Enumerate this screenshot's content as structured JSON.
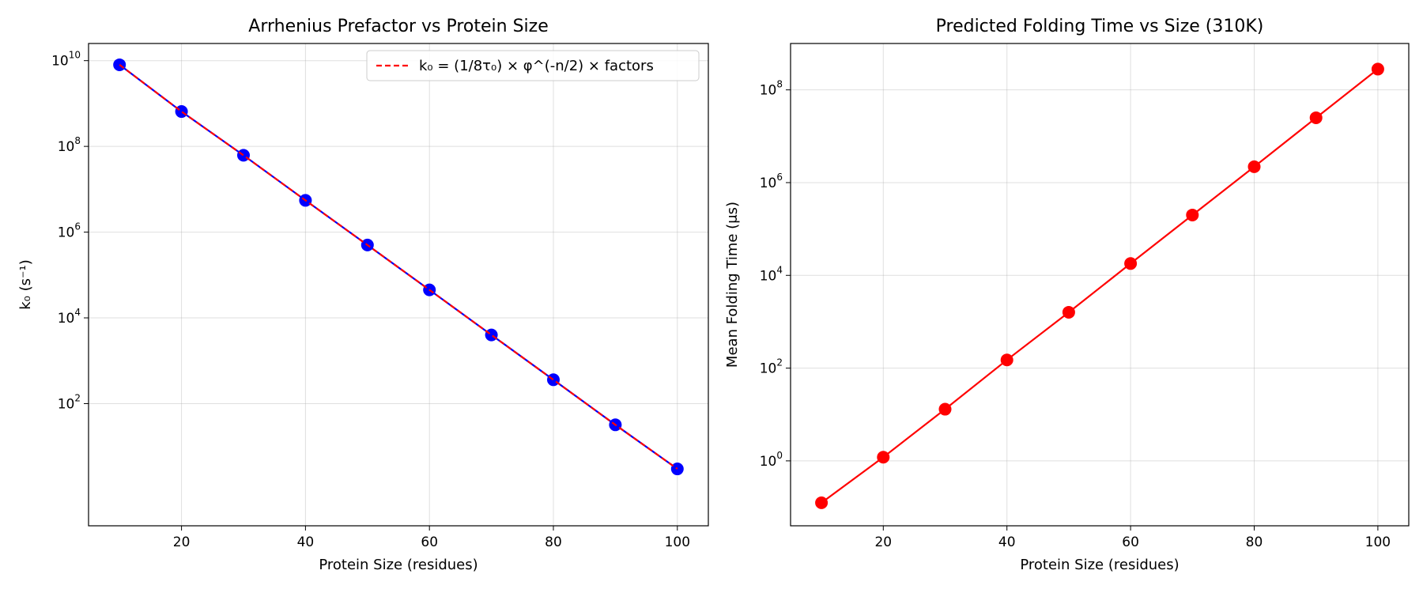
{
  "chart_data": [
    {
      "type": "line",
      "title": "Arrhenius Prefactor vs Protein Size",
      "xlabel": "Protein Size (residues)",
      "ylabel": "k₀ (s⁻¹)",
      "yscale": "log",
      "xlim": [
        5,
        105
      ],
      "ylim_log10": [
        -0.85,
        10.4
      ],
      "grid": true,
      "x_ticks": [
        20,
        40,
        60,
        80,
        100
      ],
      "y_ticks": [
        {
          "base": "10",
          "exp": "10"
        },
        {
          "base": "10",
          "exp": "8"
        },
        {
          "base": "10",
          "exp": "6"
        },
        {
          "base": "10",
          "exp": "4"
        },
        {
          "base": "10",
          "exp": "2"
        }
      ],
      "x": [
        10,
        20,
        30,
        40,
        50,
        60,
        70,
        80,
        90,
        100
      ],
      "series": [
        {
          "style": "markers-line",
          "color": "#0000ff",
          "values": [
            8000000000.0,
            650000000.0,
            62000000.0,
            5500000.0,
            500000.0,
            45000.0,
            4000.0,
            360.0,
            32.0,
            3.0
          ]
        },
        {
          "name": "k₀ = (1/8τ₀) × φ^(-n/2) × factors",
          "style": "dashed",
          "color": "#ff0000",
          "values": [
            8000000000.0,
            650000000.0,
            62000000.0,
            5500000.0,
            500000.0,
            45000.0,
            4000.0,
            360.0,
            32.0,
            3.0
          ]
        }
      ],
      "legend": {
        "placement": "top-right",
        "label": "k₀ = (1/8τ₀) × φ^(-n/2) × factors"
      }
    },
    {
      "type": "line",
      "title": "Predicted Folding Time vs Size (310K)",
      "xlabel": "Protein Size (residues)",
      "ylabel": "Mean Folding Time (μs)",
      "yscale": "log",
      "xlim": [
        5,
        105
      ],
      "ylim_log10": [
        -1.4,
        9.0
      ],
      "grid": true,
      "x_ticks": [
        20,
        40,
        60,
        80,
        100
      ],
      "y_ticks": [
        {
          "base": "10",
          "exp": "8"
        },
        {
          "base": "10",
          "exp": "6"
        },
        {
          "base": "10",
          "exp": "4"
        },
        {
          "base": "10",
          "exp": "2"
        },
        {
          "base": "10",
          "exp": "0"
        }
      ],
      "x": [
        10,
        20,
        30,
        40,
        50,
        60,
        70,
        80,
        90,
        100
      ],
      "series": [
        {
          "style": "markers-line",
          "color": "#ff0000",
          "values": [
            0.125,
            1.2,
            13,
            150,
            1600,
            18000,
            200000,
            2200000,
            25000000,
            280000000
          ]
        }
      ]
    }
  ]
}
